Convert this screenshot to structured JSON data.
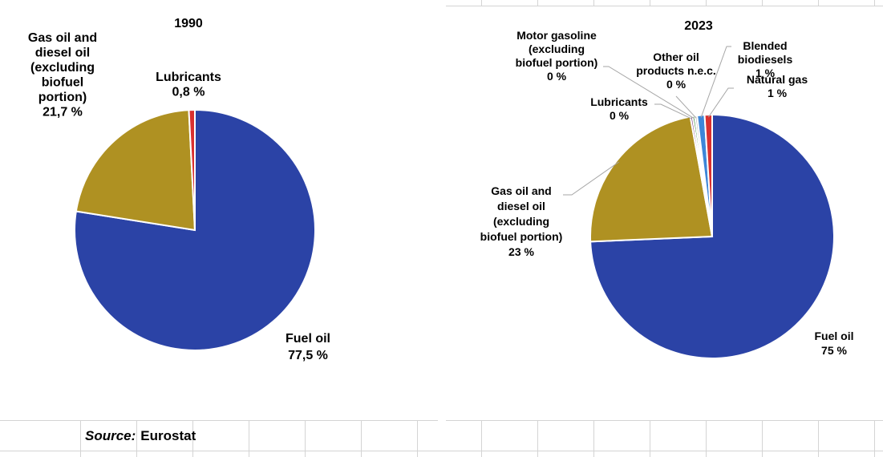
{
  "source": {
    "label": "Source:",
    "value": "Eurostat"
  },
  "chart_data": [
    {
      "type": "pie",
      "title": "1990",
      "slices": [
        {
          "label": "Fuel oil",
          "value": 77.5,
          "display": "77,5 %",
          "color": "#2b43a6"
        },
        {
          "label": "Gas oil and diesel oil (excluding biofuel portion)",
          "value": 21.7,
          "display": "21,7 %",
          "color": "#af9122"
        },
        {
          "label": "Lubricants",
          "value": 0.8,
          "display": "0,8 %",
          "color": "#d9302f"
        }
      ],
      "label_lines": {
        "Fuel oil": [
          "Fuel oil"
        ],
        "Gas oil and diesel oil (excluding biofuel portion)": [
          "Gas oil and",
          "diesel oil",
          "(excluding",
          "biofuel",
          "portion)"
        ],
        "Lubricants": [
          "Lubricants"
        ]
      }
    },
    {
      "type": "pie",
      "title": "2023",
      "slices": [
        {
          "label": "Fuel oil",
          "value": 75,
          "display": "75 %",
          "color": "#2b43a6"
        },
        {
          "label": "Gas oil and diesel oil (excluding biofuel portion)",
          "value": 23,
          "display": "23 %",
          "color": "#af9122"
        },
        {
          "label": "Lubricants",
          "value": 0,
          "display": "0 %",
          "color": "#7b3f7b"
        },
        {
          "label": "Motor gasoline (excluding biofuel portion)",
          "value": 0,
          "display": "0 %",
          "color": "#3b8c3b"
        },
        {
          "label": "Other oil products n.e.c.",
          "value": 0,
          "display": "0 %",
          "color": "#bbbbbb"
        },
        {
          "label": "Blended biodiesels",
          "value": 1,
          "display": "1 %",
          "color": "#3d86d8"
        },
        {
          "label": "Natural gas",
          "value": 1,
          "display": "1 %",
          "color": "#d9302f"
        }
      ],
      "label_lines": {
        "Fuel oil": [
          "Fuel oil"
        ],
        "Gas oil and diesel oil (excluding biofuel portion)": [
          "Gas oil and",
          "diesel oil",
          "(excluding",
          "biofuel portion)"
        ],
        "Lubricants": [
          "Lubricants"
        ],
        "Motor gasoline (excluding biofuel portion)": [
          "Motor gasoline",
          "(excluding",
          "biofuel portion)"
        ],
        "Other oil products n.e.c.": [
          "Other oil",
          "products n.e.c."
        ],
        "Blended biodiesels": [
          "Blended",
          "biodiesels"
        ],
        "Natural gas": [
          "Natural gas"
        ]
      }
    }
  ]
}
